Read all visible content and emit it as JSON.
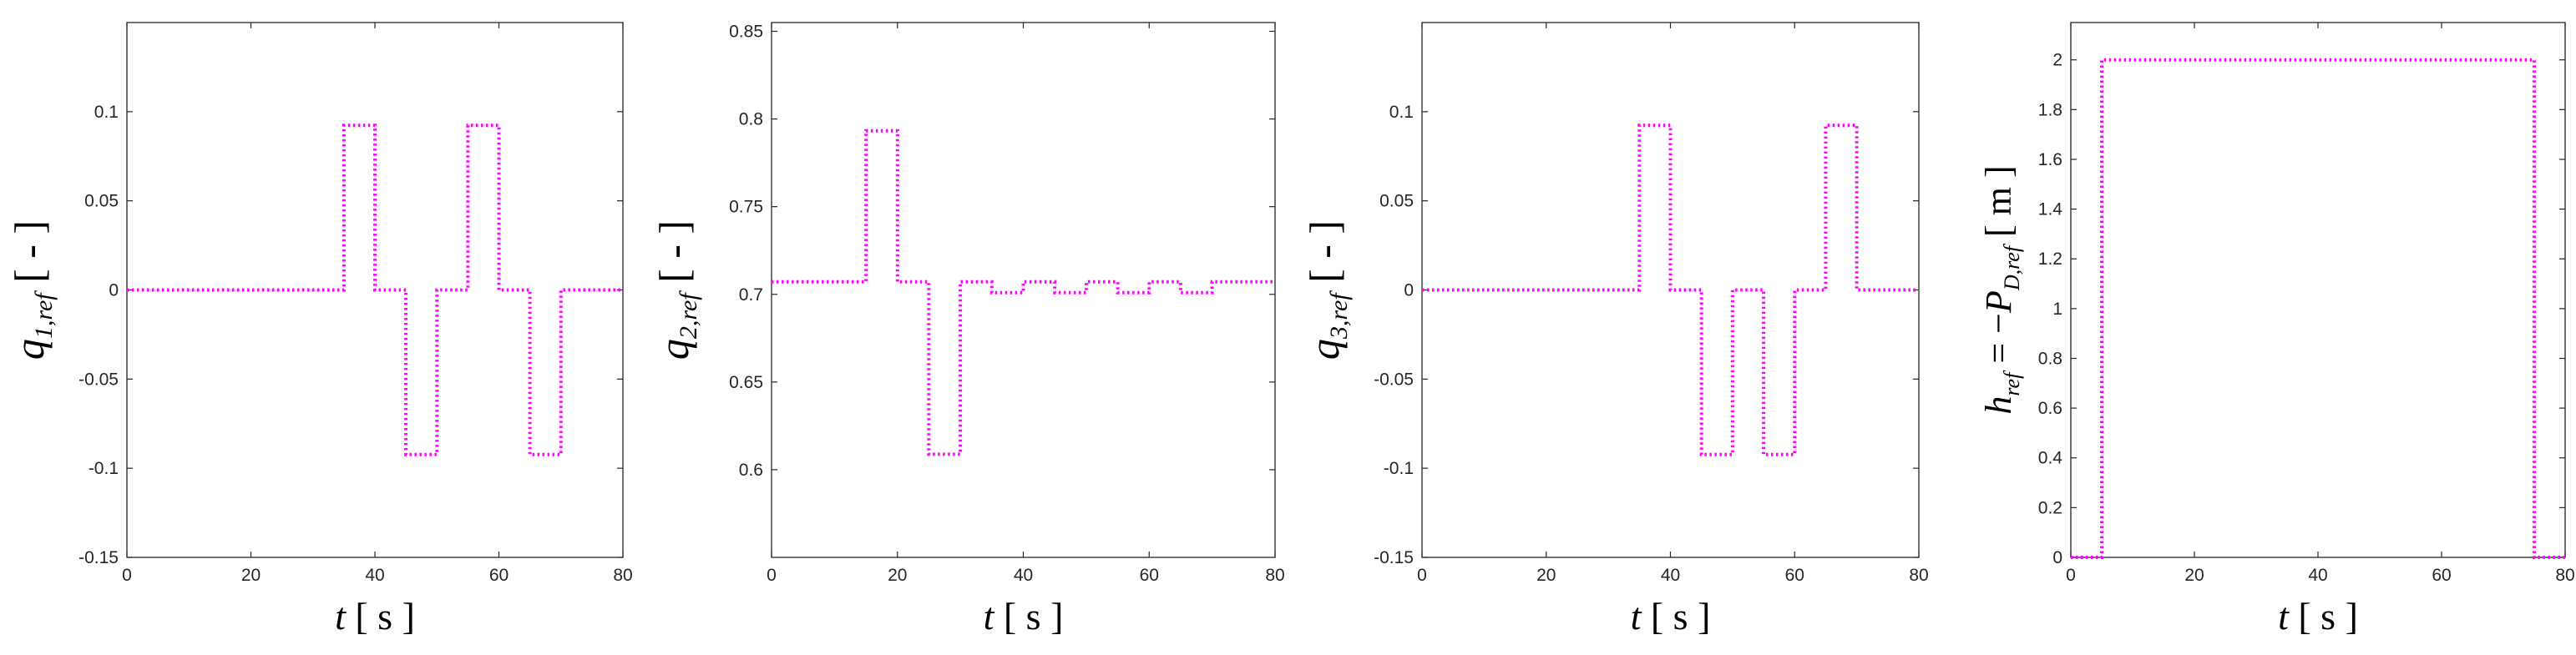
{
  "chart_data": [
    {
      "type": "line",
      "xlabel_var": "t",
      "xlabel_unit": "[ s ]",
      "ylabel_var": "q",
      "ylabel_sub": "1,ref",
      "ylabel_unit": "[ - ]",
      "xlim": [
        0,
        80
      ],
      "ylim": [
        -0.15,
        0.15
      ],
      "xticks": [
        "0",
        "20",
        "40",
        "60",
        "80"
      ],
      "yticks": [
        "-0.15",
        "-0.1",
        "-0.05",
        "0",
        "0.05",
        "0.1"
      ],
      "grid": false,
      "line_color": "#ff00ff",
      "line_style": "dotted",
      "series": [
        {
          "x": [
            0,
            35,
            35,
            40,
            40,
            45,
            45,
            50,
            50,
            55,
            55,
            60,
            60,
            65,
            65,
            70,
            70,
            80
          ],
          "y": [
            0,
            0,
            0.0923,
            0.0923,
            0,
            0,
            -0.0923,
            -0.0923,
            0,
            0,
            0.0923,
            0.0923,
            0,
            0,
            -0.0923,
            -0.0923,
            0,
            0
          ]
        }
      ]
    },
    {
      "type": "line",
      "xlabel_var": "t",
      "xlabel_unit": "[ s ]",
      "ylabel_var": "q",
      "ylabel_sub": "2,ref",
      "ylabel_unit": "[ - ]",
      "xlim": [
        0,
        80
      ],
      "ylim": [
        0.55,
        0.855
      ],
      "xticks": [
        "0",
        "20",
        "40",
        "60",
        "80"
      ],
      "yticks": [
        "0.6",
        "0.65",
        "0.7",
        "0.75",
        "0.8",
        "0.85"
      ],
      "grid": false,
      "line_color": "#ff00ff",
      "line_style": "dotted",
      "series": [
        {
          "x": [
            0,
            15,
            15,
            20,
            20,
            25,
            25,
            30,
            30,
            35,
            35,
            40,
            40,
            45,
            45,
            50,
            50,
            55,
            55,
            60,
            60,
            65,
            65,
            70,
            70,
            80
          ],
          "y": [
            0.7071,
            0.7071,
            0.7933,
            0.7933,
            0.7071,
            0.7071,
            0.6088,
            0.6088,
            0.7071,
            0.7071,
            0.701,
            0.701,
            0.7071,
            0.7071,
            0.701,
            0.701,
            0.7071,
            0.7071,
            0.701,
            0.701,
            0.7071,
            0.7071,
            0.701,
            0.701,
            0.7071,
            0.7071
          ]
        }
      ]
    },
    {
      "type": "line",
      "xlabel_var": "t",
      "xlabel_unit": "[ s ]",
      "ylabel_var": "q",
      "ylabel_sub": "3,ref",
      "ylabel_unit": "[ - ]",
      "xlim": [
        0,
        80
      ],
      "ylim": [
        -0.15,
        0.15
      ],
      "xticks": [
        "0",
        "20",
        "40",
        "60",
        "80"
      ],
      "yticks": [
        "-0.15",
        "-0.1",
        "-0.05",
        "0",
        "0.05",
        "0.1"
      ],
      "grid": false,
      "line_color": "#ff00ff",
      "line_style": "dotted",
      "series": [
        {
          "x": [
            0,
            35,
            35,
            40,
            40,
            45,
            45,
            50,
            50,
            55,
            55,
            60,
            60,
            65,
            65,
            70,
            70,
            80
          ],
          "y": [
            0,
            0,
            0.0923,
            0.0923,
            0,
            0,
            -0.0923,
            -0.0923,
            0,
            0,
            -0.0923,
            -0.0923,
            0,
            0,
            0.0923,
            0.0923,
            0,
            0
          ]
        }
      ]
    },
    {
      "type": "line",
      "xlabel_var": "t",
      "xlabel_unit": "[ s ]",
      "ylabel_var": "h",
      "ylabel_sub": "ref",
      "ylabel_mid": " = −",
      "ylabel_var2": "P",
      "ylabel_sub2": "D,ref",
      "ylabel_unit": "[ m ]",
      "xlim": [
        0,
        80
      ],
      "ylim": [
        0,
        2.15
      ],
      "xticks": [
        "0",
        "20",
        "40",
        "60",
        "80"
      ],
      "yticks": [
        "0",
        "0.2",
        "0.4",
        "0.6",
        "0.8",
        "1",
        "1.2",
        "1.4",
        "1.6",
        "1.8",
        "2"
      ],
      "grid": false,
      "line_color": "#ff00ff",
      "line_style": "dotted",
      "series": [
        {
          "x": [
            0,
            5,
            5,
            75,
            75,
            80
          ],
          "y": [
            0,
            0,
            2,
            2,
            0,
            0
          ]
        }
      ]
    }
  ]
}
